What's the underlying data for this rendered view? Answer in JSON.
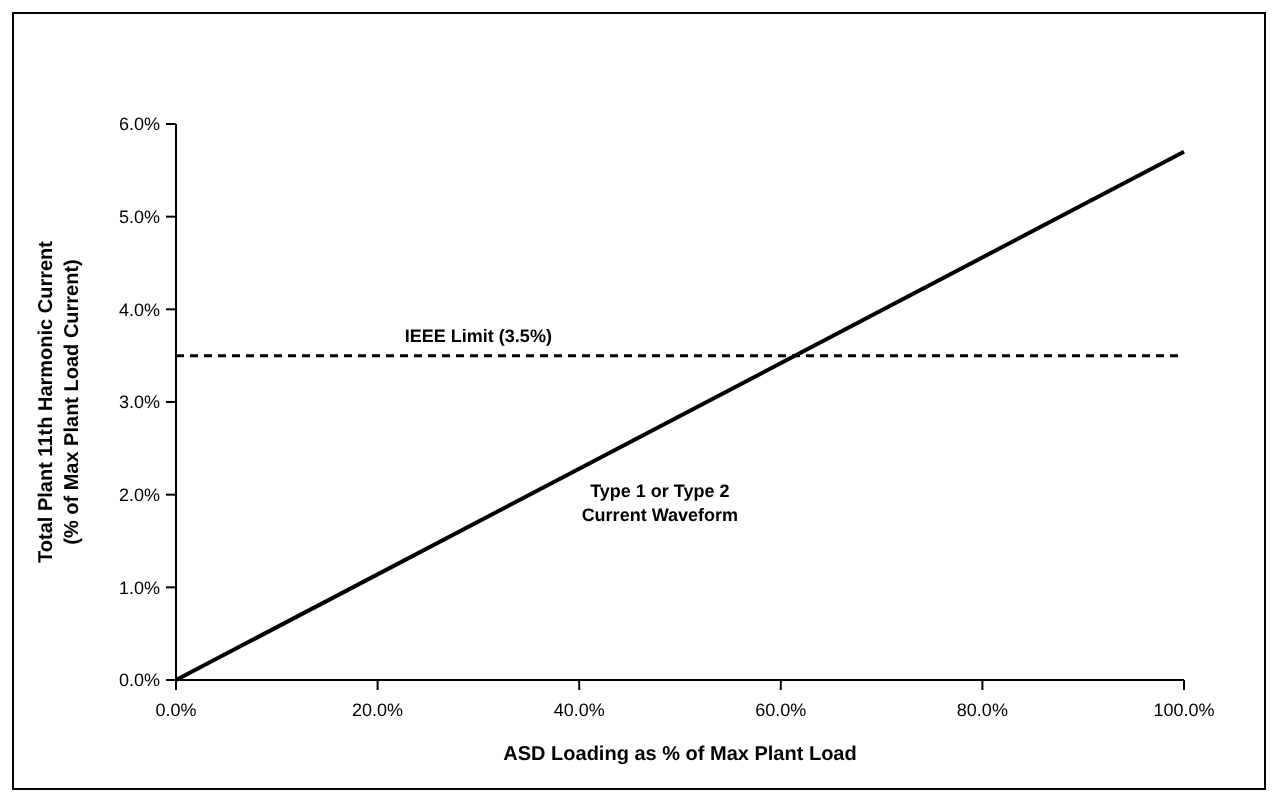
{
  "chart_data": {
    "type": "line",
    "xlabel": "ASD Loading as % of Max Plant Load",
    "ylabel": "Total Plant 11th Harmonic Current\n(% of Max Plant Load Current)",
    "x": [
      0,
      100
    ],
    "series": [
      {
        "color": "#000000",
        "values": [
          0,
          5.7
        ]
      }
    ],
    "xlim": [
      0,
      100
    ],
    "xticks": [
      {
        "value": 0,
        "label": "0.0%"
      },
      {
        "value": 20,
        "label": "20.0%"
      },
      {
        "value": 40,
        "label": "40.0%"
      },
      {
        "value": 60,
        "label": "60.0%"
      },
      {
        "value": 80,
        "label": "80.0%"
      },
      {
        "value": 100,
        "label": "100.0%"
      }
    ],
    "ylim": [
      0,
      6
    ],
    "yticks": [
      {
        "value": 0,
        "label": "0.0%"
      },
      {
        "value": 1,
        "label": "1.0%"
      },
      {
        "value": 2,
        "label": "2.0%"
      },
      {
        "value": 3,
        "label": "3.0%"
      },
      {
        "value": 4,
        "label": "4.0%"
      },
      {
        "value": 5,
        "label": "5.0%"
      },
      {
        "value": 6,
        "label": "6.0%"
      }
    ],
    "ref_lines": [
      {
        "axis": "y",
        "value": 3.5,
        "label": "IEEE Limit (3.5%)",
        "color": "#000000",
        "line_style": "dashed"
      }
    ],
    "annotations": [
      "Type 1 or Type 2\nCurrent Waveform"
    ],
    "grid": false,
    "marker": "none",
    "line_style": "solid"
  }
}
